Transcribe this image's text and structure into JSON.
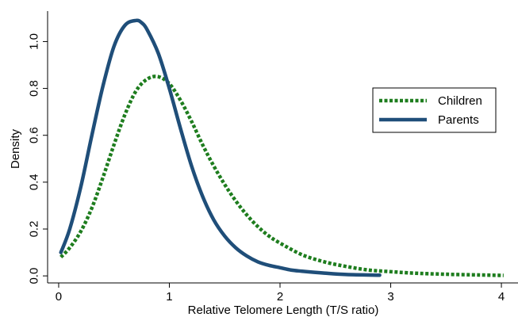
{
  "chart_data": {
    "type": "line",
    "title": "",
    "xlabel": "Relative Telomere Length (T/S ratio)",
    "ylabel": "Density",
    "xlim": [
      -0.1,
      4.15
    ],
    "ylim": [
      -0.03,
      1.13
    ],
    "xticks": [
      0,
      1,
      2,
      3,
      4
    ],
    "yticks": [
      0.0,
      0.2,
      0.4,
      0.6,
      0.8,
      1.0
    ],
    "xtick_labels": [
      "0",
      "1",
      "2",
      "3",
      "4"
    ],
    "ytick_labels": [
      "0.0",
      "0.2",
      "0.4",
      "0.6",
      "0.8",
      "1.0"
    ],
    "grid": false,
    "legend_position": "right",
    "series": [
      {
        "name": "Children",
        "color": "#1e7d1e",
        "style": "dotted",
        "x": [
          0.02,
          0.1,
          0.2,
          0.3,
          0.4,
          0.5,
          0.6,
          0.7,
          0.8,
          0.9,
          1.0,
          1.1,
          1.2,
          1.3,
          1.4,
          1.5,
          1.6,
          1.7,
          1.8,
          1.9,
          2.0,
          2.2,
          2.4,
          2.6,
          2.8,
          3.0,
          3.2,
          3.5,
          3.8,
          4.02
        ],
        "y": [
          0.08,
          0.12,
          0.19,
          0.29,
          0.42,
          0.56,
          0.69,
          0.79,
          0.84,
          0.85,
          0.82,
          0.75,
          0.66,
          0.56,
          0.47,
          0.39,
          0.32,
          0.26,
          0.21,
          0.17,
          0.14,
          0.09,
          0.06,
          0.04,
          0.025,
          0.018,
          0.012,
          0.007,
          0.004,
          0.002
        ]
      },
      {
        "name": "Parents",
        "color": "#1f4e79",
        "style": "solid",
        "x": [
          0.02,
          0.1,
          0.2,
          0.3,
          0.4,
          0.5,
          0.6,
          0.7,
          0.75,
          0.8,
          0.9,
          1.0,
          1.1,
          1.2,
          1.3,
          1.4,
          1.5,
          1.6,
          1.7,
          1.8,
          1.9,
          2.0,
          2.1,
          2.2,
          2.4,
          2.6,
          2.9
        ],
        "y": [
          0.1,
          0.2,
          0.38,
          0.6,
          0.81,
          0.98,
          1.07,
          1.09,
          1.08,
          1.05,
          0.95,
          0.8,
          0.63,
          0.47,
          0.34,
          0.24,
          0.17,
          0.12,
          0.085,
          0.06,
          0.045,
          0.035,
          0.025,
          0.02,
          0.012,
          0.006,
          0.003
        ]
      }
    ]
  }
}
